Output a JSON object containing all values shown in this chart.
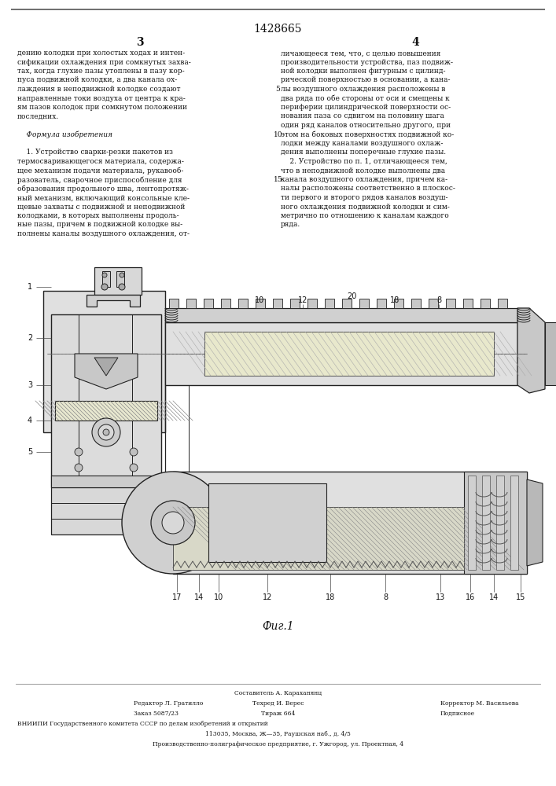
{
  "patent_number": "1428665",
  "col_left_num": "3",
  "col_right_num": "4",
  "line_numbers_idx": [
    4,
    9,
    14
  ],
  "line_numbers_val": [
    "5",
    "10",
    "15"
  ],
  "left_col_text": [
    "дению колодки при холостых ходах и интен-",
    "сификации охлаждения при сомкнутых захва-",
    "тах, когда глухие пазы утоплены в пазу кор-",
    "пуса подвижной колодки, а два канала ох-",
    "лаждения в неподвижной колодке создают",
    "направленные токи воздуха от центра к кра-",
    "ям пазов колодок при сомкнутом положении",
    "последних.",
    "",
    "    Формула изобретения",
    "",
    "    1. Устройство сварки-резки пакетов из",
    "термосваривающегося материала, содержа-",
    "щее механизм подачи материала, рукавооб-",
    "разователь, сварочное приспособление для",
    "образования продольного шва, лентопротяж-",
    "ный механизм, включающий консольные кле-",
    "щевые захваты с подвижной и неподвижной",
    "колодками, в которых выполнены продоль-",
    "ные пазы, причем в подвижной колодке вы-",
    "полнены каналы воздушного охлаждения, от-"
  ],
  "right_col_text": [
    "личающееся тем, что, с целью повышения",
    "производительности устройства, паз подвиж-",
    "ной колодки выполнен фигурным с цилинд-",
    "рической поверхностью в основании, а кана-",
    "лы воздушного охлаждения расположены в",
    "два ряда по обе стороны от оси и смещены к",
    "периферии цилиндрической поверхности ос-",
    "нования паза со сдвигом на половину шага",
    "один ряд каналов относительно другого, при",
    "этом на боковых поверхностях подвижной ко-",
    "лодки между каналами воздушного охлаж-",
    "дения выполнены поперечные глухие пазы.",
    "    2. Устройство по п. 1, отличающееся тем,",
    "что в неподвижной колодке выполнены два",
    "канала воздушного охлаждения, причем ка-",
    "налы расположены соответственно в плоскос-",
    "ти первого и второго рядов каналов воздуш-",
    "ного охлаждения подвижной колодки и сим-",
    "метрично по отношению к каналам каждого",
    "ряда."
  ],
  "figure_caption": "Фиг.1",
  "footer_line0": "Составитель А. Караханянц",
  "footer_line1a": "Редактор Л. Гратилло",
  "footer_line1b": "Техред И. Верес",
  "footer_line1c": "Корректор М. Васильева",
  "footer_line2a": "Заказ 5087/23",
  "footer_line2b": "Тираж 664",
  "footer_line2c": "Подписное",
  "footer_line3": "ВНИИПИ Государственного комитета СССР по делам изобретений и открытий",
  "footer_line4": "113035, Москва, Ж—35, Раушская наб., д. 4/5",
  "footer_line5": "Производственно-полиграфическое предприятие, г. Ужгород, ул. Проектная, 4",
  "bg_color": "#ffffff",
  "text_color": "#111111",
  "draw_color": "#222222"
}
